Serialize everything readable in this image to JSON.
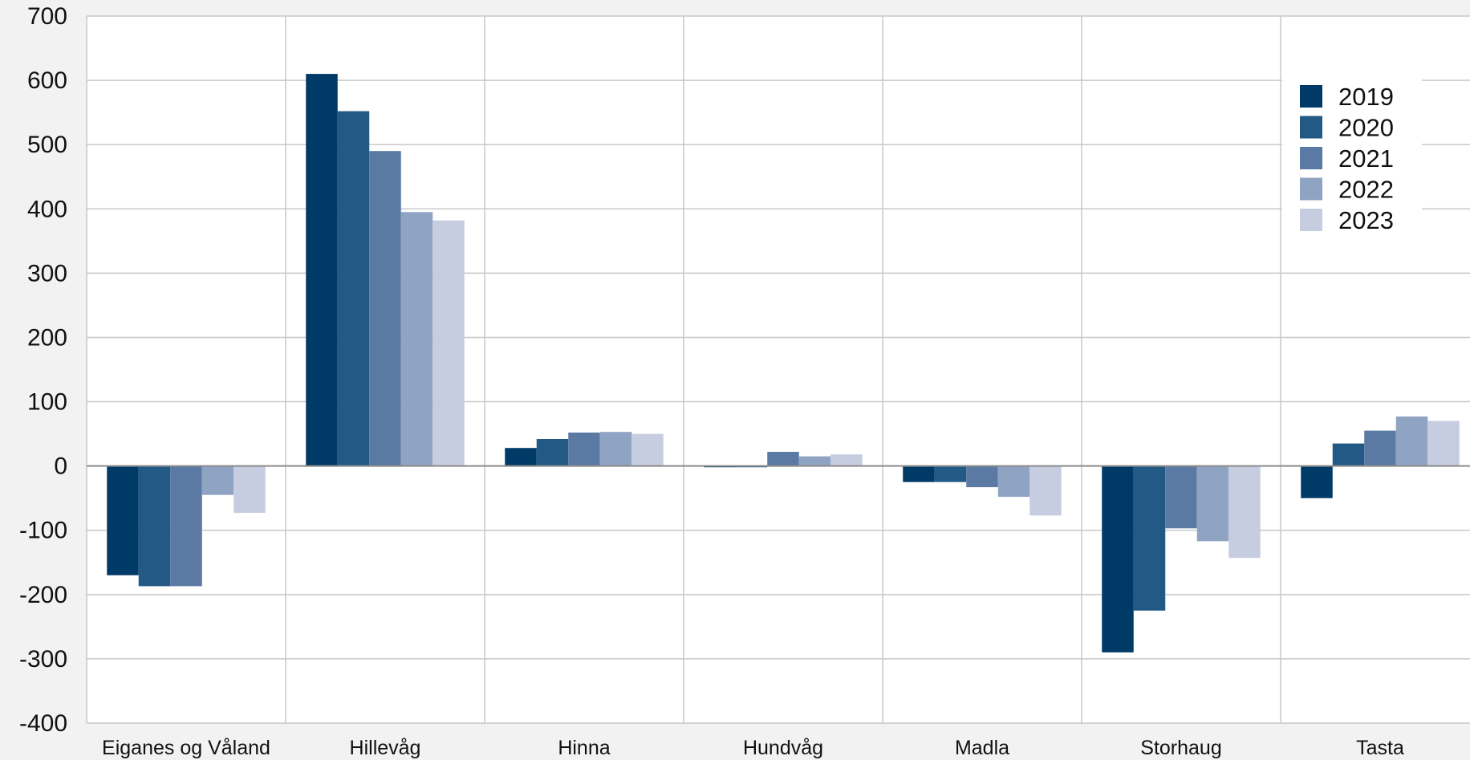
{
  "chart_data": {
    "type": "bar",
    "categories": [
      "Eiganes og Våland",
      "Hillevåg",
      "Hinna",
      "Hundvåg",
      "Madla",
      "Storhaug",
      "Tasta"
    ],
    "series": [
      {
        "name": "2019",
        "color": "#003a66",
        "values": [
          -170,
          610,
          28,
          -2,
          -25,
          -290,
          -50
        ]
      },
      {
        "name": "2020",
        "color": "#235985",
        "values": [
          -187,
          552,
          42,
          -2,
          -25,
          -225,
          35
        ]
      },
      {
        "name": "2021",
        "color": "#5a7aa3",
        "values": [
          -187,
          490,
          52,
          22,
          -33,
          -97,
          55
        ]
      },
      {
        "name": "2022",
        "color": "#8fa3c3",
        "values": [
          -45,
          395,
          53,
          15,
          -48,
          -117,
          77
        ]
      },
      {
        "name": "2023",
        "color": "#c6cde0",
        "values": [
          -73,
          382,
          50,
          18,
          -77,
          -143,
          70
        ]
      }
    ],
    "ylim": [
      -400,
      700
    ],
    "yticks": [
      "700",
      "600",
      "500",
      "400",
      "300",
      "200",
      "100",
      "0",
      "-100",
      "-200",
      "-300",
      "-400"
    ],
    "grid": true,
    "legend_position": "top-right",
    "title": "",
    "xlabel": "",
    "ylabel": ""
  }
}
